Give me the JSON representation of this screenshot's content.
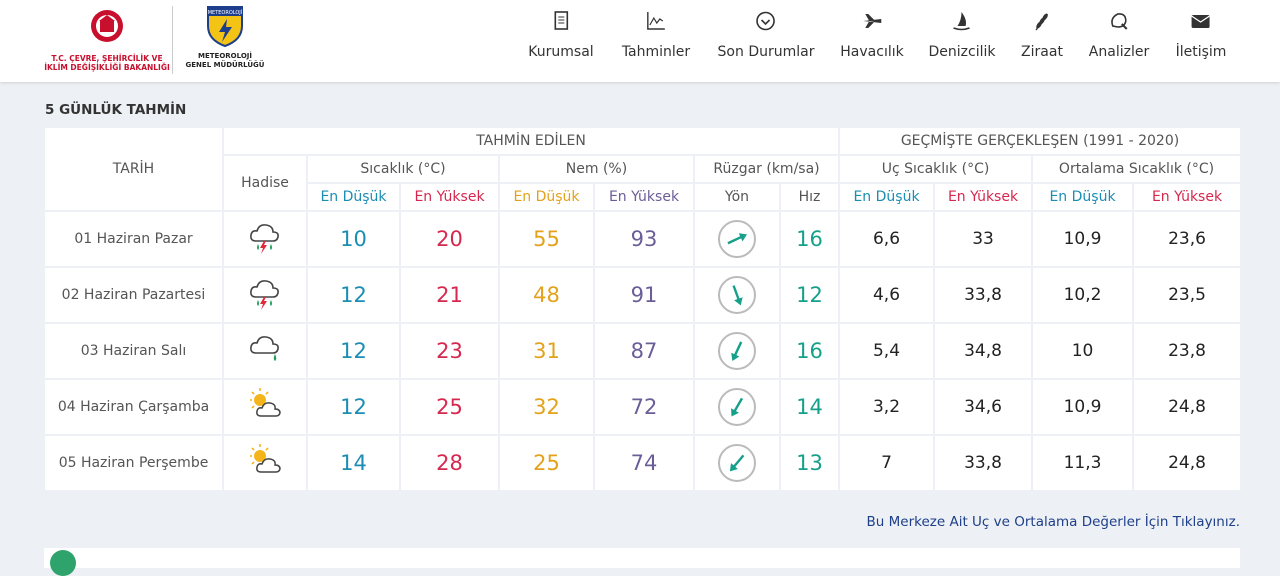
{
  "header": {
    "ministry_lines": [
      "T.C. ÇEVRE, ŞEHİRCİLİK VE",
      "İKLİM DEĞİŞİKLİĞİ BAKANLIĞI"
    ],
    "logo_text": "METEOROLOJİ",
    "org_lines": [
      "METEOROLOJİ",
      "GENEL MÜDÜRLÜĞÜ"
    ]
  },
  "nav": [
    "Kurumsal",
    "Tahminler",
    "Son Durumlar",
    "Havacılık",
    "Denizcilik",
    "Ziraat",
    "Analizler",
    "İletişim"
  ],
  "section_title": "5 GÜNLÜK TAHMİN",
  "table": {
    "date_header": "TARİH",
    "event_header": "Hadise",
    "groups": [
      "TAHMİN EDİLEN",
      "GEÇMİŞTE GERÇEKLEŞEN (1991 - 2020)"
    ],
    "subgroups": [
      "Sıcaklık (°C)",
      "Nem (%)",
      "Rüzgar (km/sa)",
      "Uç Sıcaklık (°C)",
      "Ortalama Sıcaklık (°C)"
    ],
    "columns": [
      "En Düşük",
      "En Yüksek",
      "En Düşük",
      "En Yüksek",
      "Yön",
      "Hız",
      "En Düşük",
      "En Yüksek",
      "En Düşük",
      "En Yüksek"
    ],
    "rows": [
      {
        "date": "01 Haziran Pazar",
        "temp_min": 10,
        "temp_max": 20,
        "humidity_min": 55,
        "humidity_max": 93,
        "wind_direction": 65,
        "wind_speed": 16,
        "extreme_min": "6,6",
        "extreme_max": "33",
        "mean_min": "10,9",
        "mean_max": "23,6"
      },
      {
        "date": "02 Haziran Pazartesi",
        "temp_min": 12,
        "temp_max": 21,
        "humidity_min": 48,
        "humidity_max": 91,
        "wind_direction": 160,
        "wind_speed": 12,
        "extreme_min": "4,6",
        "extreme_max": "33,8",
        "mean_min": "10,2",
        "mean_max": "23,5"
      },
      {
        "date": "03 Haziran Salı",
        "temp_min": 12,
        "temp_max": 23,
        "humidity_min": 31,
        "humidity_max": 87,
        "wind_direction": 205,
        "wind_speed": 16,
        "extreme_min": "5,4",
        "extreme_max": "34,8",
        "mean_min": "10",
        "mean_max": "23,8"
      },
      {
        "date": "04 Haziran Çarşamba",
        "temp_min": 12,
        "temp_max": 25,
        "humidity_min": 32,
        "humidity_max": 72,
        "wind_direction": 210,
        "wind_speed": 14,
        "extreme_min": "3,2",
        "extreme_max": "34,6",
        "mean_min": "10,9",
        "mean_max": "24,8"
      },
      {
        "date": "05 Haziran Perşembe",
        "temp_min": 14,
        "temp_max": 28,
        "humidity_min": 25,
        "humidity_max": 74,
        "wind_direction": 220,
        "wind_speed": 13,
        "extreme_min": "7",
        "extreme_max": "33,8",
        "mean_min": "11,3",
        "mean_max": "24,8"
      }
    ]
  },
  "link": "Bu Merkeze Ait Uç ve Ortalama Değerler İçin Tıklayınız."
}
